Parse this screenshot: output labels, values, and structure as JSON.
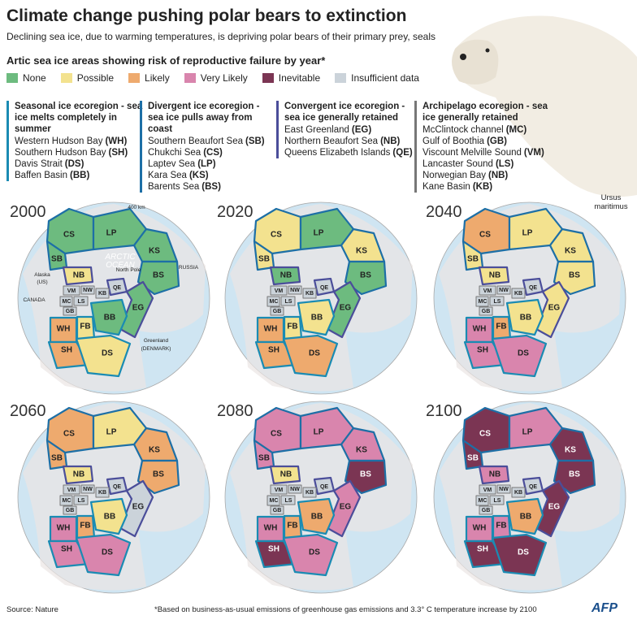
{
  "header": {
    "title": "Climate change pushing polar bears to extinction",
    "subtitle": "Declining sea ice, due to warming temperatures, is depriving polar bears of their primary prey, seals",
    "legend_title": "Artic sea ice areas showing risk of reproductive failure by year*"
  },
  "legend": [
    {
      "label": "None",
      "color": "#6dbb7f"
    },
    {
      "label": "Possible",
      "color": "#f3e28f"
    },
    {
      "label": "Likely",
      "color": "#eeaa6e"
    },
    {
      "label": "Very Likely",
      "color": "#d985ad"
    },
    {
      "label": "Inevitable",
      "color": "#7b3553"
    },
    {
      "label": "Insufficient data",
      "color": "#cbd3da"
    }
  ],
  "ecoregions": [
    {
      "title": "Seasonal ice ecoregion - sea ice melts completely in summer",
      "color": "#1a8bb3",
      "regions": [
        {
          "name": "Western Hudson Bay",
          "code": "(WH)"
        },
        {
          "name": "Southern Hudson Bay",
          "code": "(SH)"
        },
        {
          "name": "Davis Strait",
          "code": "(DS)"
        },
        {
          "name": "Baffen Basin",
          "code": "(BB)"
        }
      ]
    },
    {
      "title": "Divergent ice ecoregion - sea ice pulls away from coast",
      "color": "#1d6fa6",
      "regions": [
        {
          "name": "Southern Beaufort Sea",
          "code": "(SB)"
        },
        {
          "name": "Chukchi Sea",
          "code": "(CS)"
        },
        {
          "name": "Laptev Sea",
          "code": "(LP)"
        },
        {
          "name": "Kara Sea",
          "code": "(KS)"
        },
        {
          "name": "Barents Sea",
          "code": "(BS)"
        }
      ]
    },
    {
      "title": "Convergent ice ecoregion - sea ice generally retained",
      "color": "#4b4e9a",
      "regions": [
        {
          "name": "East Greenland",
          "code": "(EG)"
        },
        {
          "name": "Northern Beaufort Sea",
          "code": "(NB)"
        },
        {
          "name": "Queens Elizabeth Islands",
          "code": "(QE)"
        }
      ]
    },
    {
      "title": "Archipelago ecoregion - sea ice generally retained",
      "color": "#777777",
      "regions": [
        {
          "name": "McClintock channel",
          "code": "(MC)"
        },
        {
          "name": "Gulf of Boothia",
          "code": "(GB)"
        },
        {
          "name": "Viscount Melville Sound",
          "code": "(VM)"
        },
        {
          "name": "Lancaster Sound",
          "code": "(LS)"
        },
        {
          "name": "Norwegian Bay",
          "code": "(NB)"
        },
        {
          "name": "Kane Basin",
          "code": "(KB)"
        }
      ]
    }
  ],
  "map_regions": [
    "CS",
    "LP",
    "KS",
    "BS",
    "SB",
    "NB",
    "QE",
    "EG",
    "VM",
    "NW",
    "KB",
    "MC",
    "LS",
    "GB",
    "BB",
    "FB",
    "WH",
    "SH",
    "DS"
  ],
  "maps": [
    {
      "year": "2000",
      "risk": [
        "None",
        "None",
        "None",
        "None",
        "None",
        "Possible",
        "Insufficient data",
        "None",
        "Insufficient data",
        "Insufficient data",
        "Insufficient data",
        "Insufficient data",
        "Insufficient data",
        "Insufficient data",
        "None",
        "Possible",
        "Likely",
        "Likely",
        "Possible"
      ],
      "annotations": [
        "400 km",
        "Alaska",
        "(US)",
        "ARCTIC",
        "OCEAN",
        "North Pole",
        "RUSSIA",
        "CANADA",
        "Greenland",
        "(DENMARK)"
      ]
    },
    {
      "year": "2020",
      "risk": [
        "Possible",
        "None",
        "Possible",
        "None",
        "Possible",
        "None",
        "Insufficient data",
        "None",
        "Insufficient data",
        "Insufficient data",
        "Insufficient data",
        "Insufficient data",
        "Insufficient data",
        "Insufficient data",
        "Possible",
        "Possible",
        "Likely",
        "Likely",
        "Likely"
      ]
    },
    {
      "year": "2040",
      "risk": [
        "Likely",
        "Possible",
        "Possible",
        "Possible",
        "Possible",
        "Possible",
        "Insufficient data",
        "Possible",
        "Insufficient data",
        "Insufficient data",
        "Insufficient data",
        "Insufficient data",
        "Insufficient data",
        "Insufficient data",
        "Possible",
        "Likely",
        "Very Likely",
        "Very Likely",
        "Very Likely"
      ]
    },
    {
      "year": "2060",
      "risk": [
        "Likely",
        "Possible",
        "Likely",
        "Likely",
        "Likely",
        "Possible",
        "Insufficient data",
        "Insufficient data",
        "Insufficient data",
        "Insufficient data",
        "Insufficient data",
        "Insufficient data",
        "Insufficient data",
        "Insufficient data",
        "Possible",
        "Likely",
        "Very Likely",
        "Very Likely",
        "Very Likely"
      ]
    },
    {
      "year": "2080",
      "risk": [
        "Very Likely",
        "Very Likely",
        "Very Likely",
        "Inevitable",
        "Very Likely",
        "Possible",
        "Insufficient data",
        "Very Likely",
        "Insufficient data",
        "Insufficient data",
        "Insufficient data",
        "Insufficient data",
        "Insufficient data",
        "Insufficient data",
        "Likely",
        "Likely",
        "Very Likely",
        "Inevitable",
        "Very Likely"
      ]
    },
    {
      "year": "2100",
      "risk": [
        "Inevitable",
        "Very Likely",
        "Inevitable",
        "Inevitable",
        "Inevitable",
        "Very Likely",
        "Insufficient data",
        "Inevitable",
        "Insufficient data",
        "Insufficient data",
        "Insufficient data",
        "Insufficient data",
        "Insufficient data",
        "Insufficient data",
        "Likely",
        "Very Likely",
        "Very Likely",
        "Inevitable",
        "Inevitable"
      ]
    }
  ],
  "caption": "Ursus maritimus",
  "footer": {
    "source": "Source: Nature",
    "note": "*Based on  business-as-usual emissions of greenhouse gas emissions and 3.3° C temperature increase by 2100",
    "logo": "AFP"
  }
}
